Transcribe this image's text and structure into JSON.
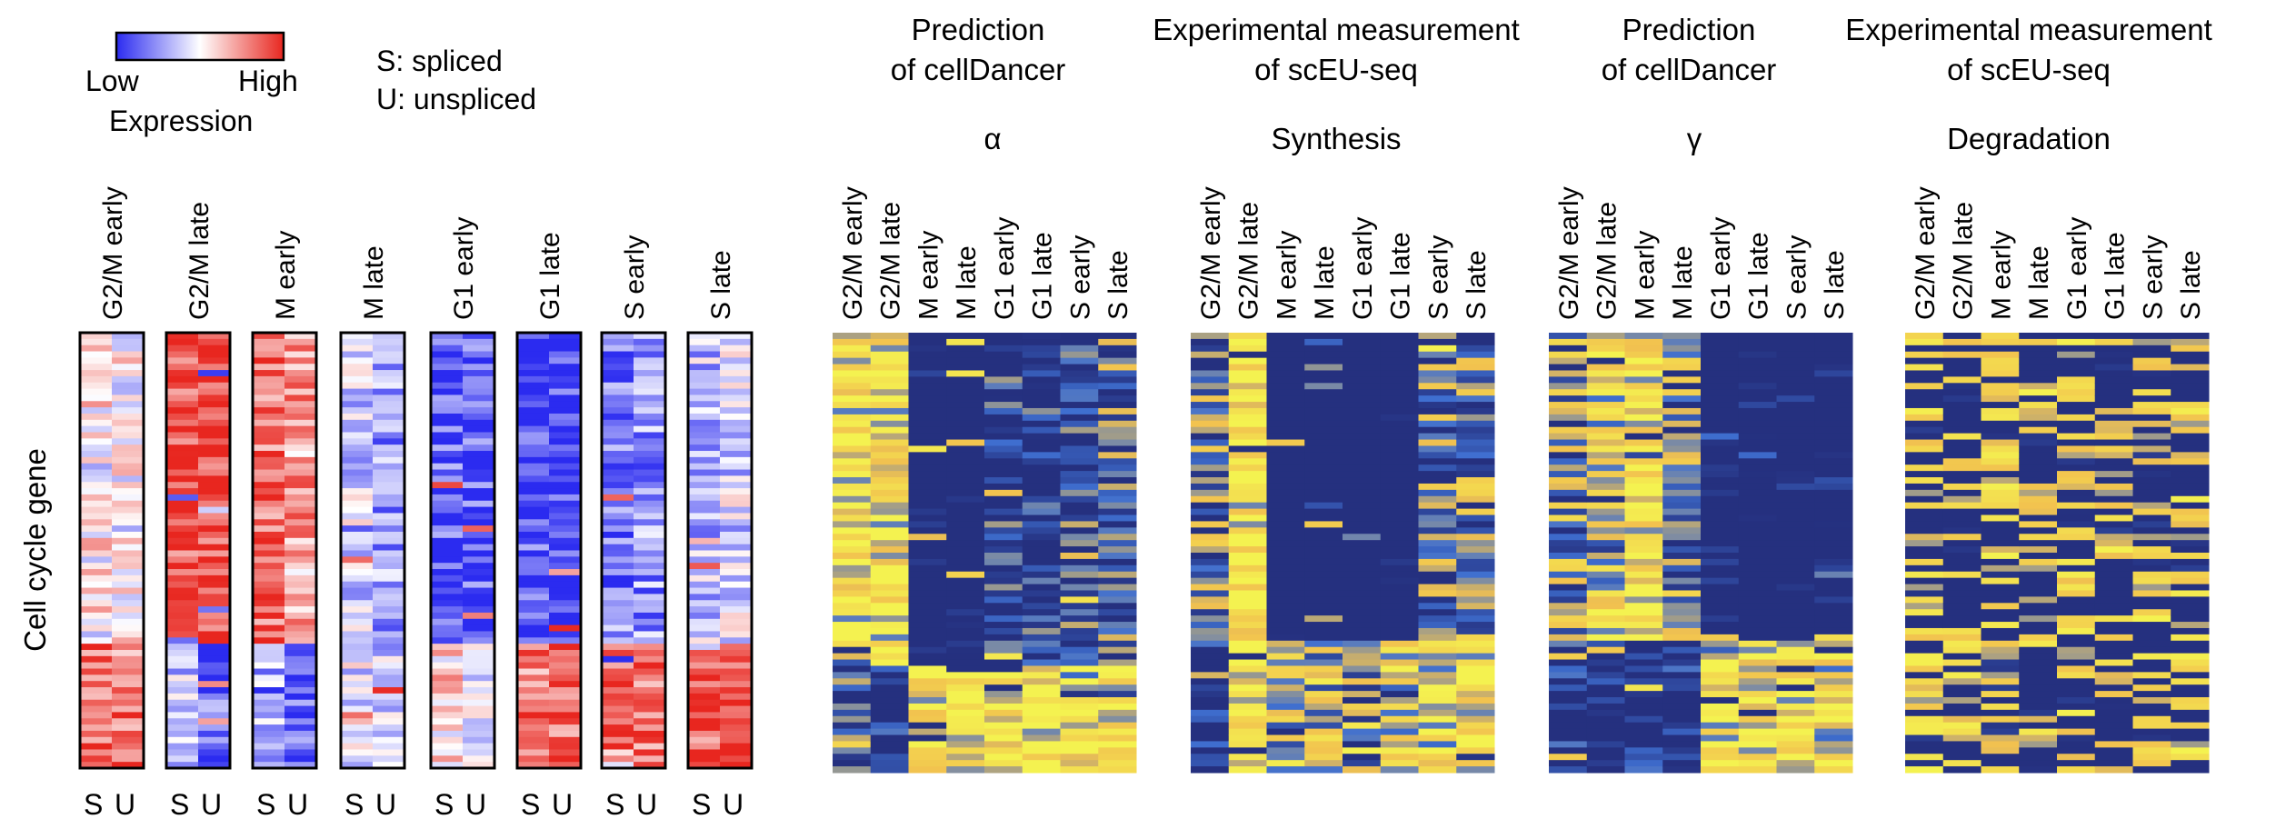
{
  "legend": {
    "low_label": "Low",
    "high_label": "High",
    "caption": "Expression",
    "gradient_colors": [
      "#2b2bf0",
      "#ffffff",
      "#e8261f"
    ],
    "notes": [
      "S: spliced",
      "U: unspliced"
    ]
  },
  "left_panel": {
    "ylabel": "Cell cycle gene",
    "groups": [
      "G2/M early",
      "G2/M late",
      "M early",
      "M late",
      "G1 early",
      "G1 late",
      "S early",
      "S late"
    ],
    "pair_labels": [
      "S",
      "U"
    ]
  },
  "panels": [
    {
      "title_lines": [
        "Prediction",
        "of cellDancer"
      ],
      "subtitle": "α",
      "columns": [
        "G2/M early",
        "G2/M late",
        "M early",
        "M late",
        "G1 early",
        "G1 late",
        "S early",
        "S late"
      ]
    },
    {
      "title_lines": [
        "Experimental measurement",
        "of scEU-seq"
      ],
      "subtitle": "Synthesis",
      "columns": [
        "G2/M early",
        "G2/M late",
        "M early",
        "M late",
        "G1 early",
        "G1 late",
        "S early",
        "S late"
      ]
    },
    {
      "title_lines": [
        "Prediction",
        "of cellDancer"
      ],
      "subtitle": "γ",
      "columns": [
        "G2/M early",
        "G2/M late",
        "M early",
        "M late",
        "G1 early",
        "G1 late",
        "S early",
        "S late"
      ]
    },
    {
      "title_lines": [
        "Experimental measurement",
        "of scEU-seq"
      ],
      "subtitle": "Degradation",
      "columns": [
        "G2/M early",
        "G2/M late",
        "M early",
        "M late",
        "G1 early",
        "G1 late",
        "S early",
        "S late"
      ]
    }
  ],
  "colors": {
    "expr_low": "#2b2bf0",
    "expr_mid": "#ffffff",
    "expr_high": "#e8261f",
    "rate_low": "#25307f",
    "rate_mid": "#3f6fd0",
    "rate_high": "#f4f250",
    "rate_orange": "#f2c24f"
  },
  "chart_data": [
    {
      "type": "heatmap",
      "title": "",
      "ylabel": "Cell cycle gene",
      "value_range": [
        0,
        1
      ],
      "scale": "Low to High expression",
      "rows": 70,
      "groups": [
        "G2/M early",
        "G2/M late",
        "M early",
        "M late",
        "G1 early",
        "G1 late",
        "S early",
        "S late"
      ],
      "columns_per_group": [
        "S",
        "U"
      ],
      "block_mean_expression": {
        "description": "approximate mean normalized expression of the top 50 rows / bottom 20 rows",
        "G2/M early": {
          "S": [
            0.55,
            0.85
          ],
          "U": [
            0.5,
            0.8
          ]
        },
        "G2/M late": {
          "S": [
            0.92,
            0.35
          ],
          "U": [
            0.95,
            0.15
          ]
        },
        "M early": {
          "S": [
            0.85,
            0.3
          ],
          "U": [
            0.7,
            0.15
          ]
        },
        "M late": {
          "S": [
            0.4,
            0.45
          ],
          "U": [
            0.25,
            0.35
          ]
        },
        "G1 early": {
          "S": [
            0.12,
            0.6
          ],
          "U": [
            0.1,
            0.5
          ]
        },
        "G1 late": {
          "S": [
            0.08,
            0.8
          ],
          "U": [
            0.05,
            0.85
          ]
        },
        "S early": {
          "S": [
            0.2,
            0.9
          ],
          "U": [
            0.25,
            0.85
          ]
        },
        "S late": {
          "S": [
            0.35,
            0.95
          ],
          "U": [
            0.4,
            0.95
          ]
        }
      }
    },
    {
      "type": "heatmap",
      "title": "Prediction of cellDancer",
      "subtitle": "α",
      "rows": 70,
      "value_range": [
        0,
        1
      ],
      "columns": [
        "G2/M early",
        "G2/M late",
        "M early",
        "M late",
        "G1 early",
        "G1 late",
        "S early",
        "S late"
      ],
      "block_mean_values": {
        "description": "approximate mean of the top 53 rows / bottom 17 rows",
        "G2/M early": [
          0.85,
          0.45
        ],
        "G2/M late": [
          0.85,
          0.35
        ],
        "M early": [
          0.15,
          0.92
        ],
        "M late": [
          0.15,
          0.9
        ],
        "G1 early": [
          0.45,
          0.9
        ],
        "G1 late": [
          0.4,
          0.88
        ],
        "S early": [
          0.45,
          0.85
        ],
        "S late": [
          0.5,
          0.85
        ]
      }
    },
    {
      "type": "heatmap",
      "title": "Experimental measurement of scEU-seq",
      "subtitle": "Synthesis",
      "rows": 70,
      "value_range": [
        0,
        1
      ],
      "columns": [
        "G2/M early",
        "G2/M late",
        "M early",
        "M late",
        "G1 early",
        "G1 late",
        "S early",
        "S late"
      ],
      "block_mean_values": {
        "description": "approximate mean of the top 49 rows / bottom 21 rows",
        "G2/M early": [
          0.55,
          0.3
        ],
        "G2/M late": [
          1.0,
          0.9
        ],
        "M early": [
          0.1,
          0.7
        ],
        "M late": [
          0.05,
          0.7
        ],
        "G1 early": [
          0.05,
          0.6
        ],
        "G1 late": [
          0.1,
          0.7
        ],
        "S early": [
          0.55,
          0.8
        ],
        "S late": [
          0.6,
          0.85
        ]
      }
    },
    {
      "type": "heatmap",
      "title": "Prediction of cellDancer",
      "subtitle": "γ",
      "rows": 70,
      "value_range": [
        0,
        1
      ],
      "columns": [
        "G2/M early",
        "G2/M late",
        "M early",
        "M late",
        "G1 early",
        "G1 late",
        "S early",
        "S late"
      ],
      "block_mean_values": {
        "description": "approximate mean of the top 49 rows / bottom 21 rows",
        "G2/M early": [
          0.6,
          0.35
        ],
        "G2/M late": [
          0.75,
          0.3
        ],
        "M early": [
          0.85,
          0.3
        ],
        "M late": [
          0.6,
          0.3
        ],
        "G1 early": [
          0.15,
          0.85
        ],
        "G1 late": [
          0.1,
          0.85
        ],
        "S early": [
          0.1,
          0.85
        ],
        "S late": [
          0.15,
          0.8
        ]
      }
    },
    {
      "type": "heatmap",
      "title": "Experimental measurement of scEU-seq",
      "subtitle": "Degradation",
      "rows": 70,
      "value_range": [
        0,
        1
      ],
      "columns": [
        "G2/M early",
        "G2/M late",
        "M early",
        "M late",
        "G1 early",
        "G1 late",
        "S early",
        "S late"
      ],
      "block_mean_values": {
        "description": "approximate mean across all rows (mixed pattern)",
        "G2/M early": [
          0.45
        ],
        "G2/M late": [
          0.45
        ],
        "M early": [
          0.5
        ],
        "M late": [
          0.4
        ],
        "G1 early": [
          0.4
        ],
        "G1 late": [
          0.4
        ],
        "S early": [
          0.45
        ],
        "S late": [
          0.45
        ]
      }
    }
  ]
}
